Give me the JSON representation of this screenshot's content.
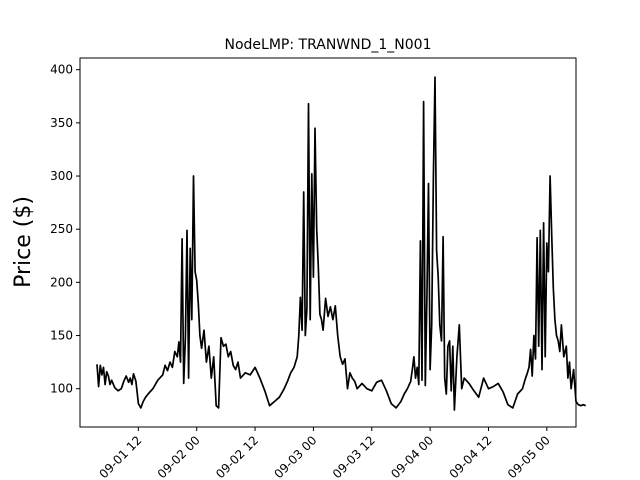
{
  "chart_data": {
    "type": "line",
    "title": "NodeLMP: TRANWND_1_N001",
    "xlabel": "",
    "ylabel": "Price ($)",
    "grid": false,
    "legend": "none",
    "x_is_datetime": true,
    "xlim": [
      "2021-09-01T00:00:00",
      "2021-09-05T06:00:00"
    ],
    "ylim": [
      64,
      411
    ],
    "xticks": [
      {
        "value": "2021-09-01T12:00:00",
        "label": "09-01 12"
      },
      {
        "value": "2021-09-02T00:00:00",
        "label": "09-02 00"
      },
      {
        "value": "2021-09-02T12:00:00",
        "label": "09-02 12"
      },
      {
        "value": "2021-09-03T00:00:00",
        "label": "09-03 00"
      },
      {
        "value": "2021-09-03T12:00:00",
        "label": "09-03 12"
      },
      {
        "value": "2021-09-04T00:00:00",
        "label": "09-04 00"
      },
      {
        "value": "2021-09-04T12:00:00",
        "label": "09-04 12"
      },
      {
        "value": "2021-09-05T00:00:00",
        "label": "09-05 00"
      }
    ],
    "yticks": [
      100,
      150,
      200,
      250,
      300,
      350,
      400
    ],
    "series": [
      {
        "name": "",
        "color": "#000000",
        "x": [
          "2021-09-01T03:30:00",
          "2021-09-01T03:50:00",
          "2021-09-01T04:10:00",
          "2021-09-01T04:30:00",
          "2021-09-01T04:50:00",
          "2021-09-01T05:10:00",
          "2021-09-01T05:30:00",
          "2021-09-01T05:50:00",
          "2021-09-01T06:10:00",
          "2021-09-01T06:30:00",
          "2021-09-01T07:10:00",
          "2021-09-01T07:50:00",
          "2021-09-01T08:30:00",
          "2021-09-01T09:00:00",
          "2021-09-01T09:30:00",
          "2021-09-01T10:00:00",
          "2021-09-01T10:20:00",
          "2021-09-01T10:40:00",
          "2021-09-01T11:00:00",
          "2021-09-01T11:30:00",
          "2021-09-01T12:00:00",
          "2021-09-01T12:30:00",
          "2021-09-01T13:00:00",
          "2021-09-01T13:30:00",
          "2021-09-01T14:00:00",
          "2021-09-01T15:00:00",
          "2021-09-01T16:00:00",
          "2021-09-01T17:00:00",
          "2021-09-01T17:30:00",
          "2021-09-01T18:00:00",
          "2021-09-01T18:30:00",
          "2021-09-01T19:00:00",
          "2021-09-01T19:30:00",
          "2021-09-01T20:00:00",
          "2021-09-01T20:20:00",
          "2021-09-01T20:40:00",
          "2021-09-01T21:00:00",
          "2021-09-01T21:20:00",
          "2021-09-01T21:40:00",
          "2021-09-01T22:00:00",
          "2021-09-01T22:20:00",
          "2021-09-01T22:40:00",
          "2021-09-01T23:00:00",
          "2021-09-01T23:20:00",
          "2021-09-01T23:40:00",
          "2021-09-02T00:00:00",
          "2021-09-02T00:20:00",
          "2021-09-02T00:40:00",
          "2021-09-02T01:00:00",
          "2021-09-02T01:30:00",
          "2021-09-02T02:00:00",
          "2021-09-02T02:30:00",
          "2021-09-02T03:00:00",
          "2021-09-02T03:30:00",
          "2021-09-02T04:00:00",
          "2021-09-02T04:30:00",
          "2021-09-02T05:00:00",
          "2021-09-02T05:30:00",
          "2021-09-02T06:00:00",
          "2021-09-02T06:30:00",
          "2021-09-02T07:00:00",
          "2021-09-02T07:30:00",
          "2021-09-02T08:00:00",
          "2021-09-02T08:30:00",
          "2021-09-02T09:00:00",
          "2021-09-02T10:00:00",
          "2021-09-02T11:00:00",
          "2021-09-02T12:00:00",
          "2021-09-02T13:00:00",
          "2021-09-02T14:00:00",
          "2021-09-02T15:00:00",
          "2021-09-02T16:00:00",
          "2021-09-02T17:00:00",
          "2021-09-02T18:00:00",
          "2021-09-02T18:40:00",
          "2021-09-02T19:20:00",
          "2021-09-02T20:00:00",
          "2021-09-02T20:20:00",
          "2021-09-02T20:40:00",
          "2021-09-02T21:00:00",
          "2021-09-02T21:20:00",
          "2021-09-02T21:40:00",
          "2021-09-02T22:00:00",
          "2021-09-02T22:20:00",
          "2021-09-02T22:40:00",
          "2021-09-02T23:00:00",
          "2021-09-02T23:20:00",
          "2021-09-02T23:40:00",
          "2021-09-03T00:00:00",
          "2021-09-03T00:20:00",
          "2021-09-03T00:40:00",
          "2021-09-03T01:00:00",
          "2021-09-03T01:20:00",
          "2021-09-03T01:40:00",
          "2021-09-03T02:00:00",
          "2021-09-03T02:30:00",
          "2021-09-03T03:00:00",
          "2021-09-03T03:30:00",
          "2021-09-03T04:00:00",
          "2021-09-03T04:30:00",
          "2021-09-03T05:00:00",
          "2021-09-03T05:30:00",
          "2021-09-03T06:00:00",
          "2021-09-03T06:30:00",
          "2021-09-03T07:00:00",
          "2021-09-03T07:30:00",
          "2021-09-03T08:00:00",
          "2021-09-03T08:30:00",
          "2021-09-03T09:00:00",
          "2021-09-03T10:00:00",
          "2021-09-03T11:00:00",
          "2021-09-03T12:00:00",
          "2021-09-03T13:00:00",
          "2021-09-03T14:00:00",
          "2021-09-03T15:00:00",
          "2021-09-03T16:00:00",
          "2021-09-03T17:00:00",
          "2021-09-03T18:00:00",
          "2021-09-03T18:40:00",
          "2021-09-03T19:20:00",
          "2021-09-03T20:00:00",
          "2021-09-03T20:20:00",
          "2021-09-03T20:40:00",
          "2021-09-03T21:00:00",
          "2021-09-03T21:20:00",
          "2021-09-03T21:40:00",
          "2021-09-03T22:00:00",
          "2021-09-03T22:20:00",
          "2021-09-03T22:40:00",
          "2021-09-03T23:00:00",
          "2021-09-03T23:20:00",
          "2021-09-03T23:40:00",
          "2021-09-04T00:00:00",
          "2021-09-04T00:20:00",
          "2021-09-04T00:40:00",
          "2021-09-04T01:00:00",
          "2021-09-04T01:20:00",
          "2021-09-04T01:40:00",
          "2021-09-04T02:00:00",
          "2021-09-04T02:20:00",
          "2021-09-04T02:40:00",
          "2021-09-04T03:00:00",
          "2021-09-04T03:20:00",
          "2021-09-04T03:40:00",
          "2021-09-04T04:00:00",
          "2021-09-04T04:20:00",
          "2021-09-04T04:40:00",
          "2021-09-04T05:00:00",
          "2021-09-04T05:30:00",
          "2021-09-04T06:00:00",
          "2021-09-04T06:30:00",
          "2021-09-04T07:00:00",
          "2021-09-04T08:00:00",
          "2021-09-04T09:00:00",
          "2021-09-04T10:00:00",
          "2021-09-04T11:00:00",
          "2021-09-04T12:00:00",
          "2021-09-04T13:00:00",
          "2021-09-04T14:00:00",
          "2021-09-04T15:00:00",
          "2021-09-04T16:00:00",
          "2021-09-04T17:00:00",
          "2021-09-04T18:00:00",
          "2021-09-04T19:00:00",
          "2021-09-04T19:30:00",
          "2021-09-04T20:00:00",
          "2021-09-04T20:20:00",
          "2021-09-04T20:40:00",
          "2021-09-04T21:00:00",
          "2021-09-04T21:20:00",
          "2021-09-04T21:40:00",
          "2021-09-04T22:00:00",
          "2021-09-04T22:20:00",
          "2021-09-04T22:40:00",
          "2021-09-04T23:00:00",
          "2021-09-04T23:20:00",
          "2021-09-04T23:40:00",
          "2021-09-05T00:00:00",
          "2021-09-05T00:20:00",
          "2021-09-05T00:40:00",
          "2021-09-05T01:00:00",
          "2021-09-05T01:20:00",
          "2021-09-05T01:40:00",
          "2021-09-05T02:00:00",
          "2021-09-05T02:20:00",
          "2021-09-05T02:40:00",
          "2021-09-05T03:00:00",
          "2021-09-05T03:30:00",
          "2021-09-05T04:00:00",
          "2021-09-05T04:20:00",
          "2021-09-05T04:40:00",
          "2021-09-05T05:00:00",
          "2021-09-05T05:30:00",
          "2021-09-05T06:00:00",
          "2021-09-05T06:30:00",
          "2021-09-05T07:00:00",
          "2021-09-05T07:30:00",
          "2021-09-05T08:00:00"
        ],
        "y": [
          123,
          102,
          122,
          113,
          120,
          104,
          116,
          112,
          104,
          108,
          101,
          98,
          100,
          107,
          112,
          106,
          110,
          104,
          114,
          107,
          86,
          82,
          88,
          92,
          95,
          100,
          108,
          113,
          122,
          117,
          125,
          120,
          135,
          130,
          144,
          125,
          241,
          105,
          148,
          249,
          110,
          232,
          165,
          300,
          210,
          202,
          180,
          150,
          138,
          155,
          125,
          140,
          110,
          130,
          84,
          82,
          148,
          140,
          142,
          130,
          135,
          122,
          118,
          125,
          110,
          115,
          113,
          120,
          110,
          98,
          84,
          88,
          92,
          100,
          107,
          115,
          120,
          125,
          130,
          150,
          186,
          155,
          285,
          150,
          175,
          368,
          165,
          302,
          205,
          345,
          250,
          215,
          170,
          165,
          155,
          185,
          168,
          177,
          165,
          178,
          150,
          130,
          123,
          128,
          100,
          115,
          110,
          107,
          100,
          105,
          100,
          98,
          106,
          108,
          98,
          86,
          82,
          88,
          95,
          100,
          107,
          118,
          130,
          110,
          120,
          104,
          239,
          108,
          370,
          103,
          185,
          293,
          118,
          160,
          300,
          393,
          230,
          205,
          160,
          145,
          243,
          110,
          95,
          140,
          145,
          98,
          140,
          80,
          130,
          160,
          100,
          110,
          105,
          98,
          92,
          110,
          100,
          102,
          105,
          97,
          85,
          82,
          95,
          100,
          108,
          115,
          120,
          137,
          112,
          150,
          128,
          242,
          140,
          249,
          118,
          256,
          130,
          237,
          210,
          300,
          245,
          195,
          165,
          150,
          145,
          135,
          160,
          130,
          140,
          110,
          125,
          100,
          118,
          88,
          85,
          84,
          85,
          84
        ]
      }
    ]
  }
}
